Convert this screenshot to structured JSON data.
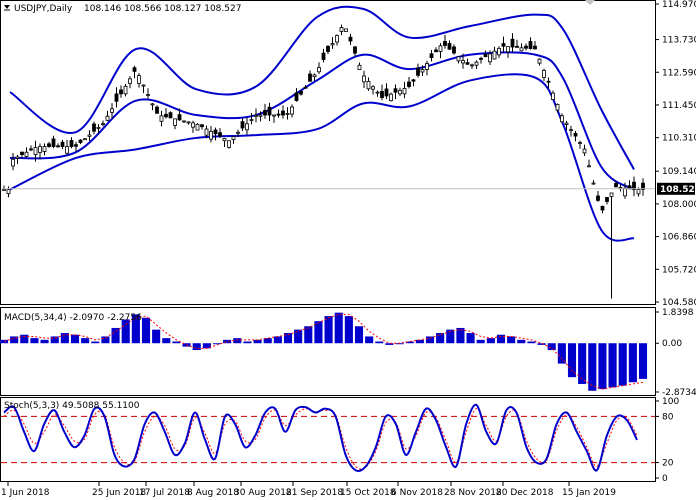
{
  "header": {
    "symbol": "USDJPY,Daily",
    "ohlc": "108.146 108.566 108.127 108.527"
  },
  "price_panel": {
    "last_price": "108.527",
    "y_ticks": [
      "114.970",
      "113.730",
      "112.590",
      "111.450",
      "110.310",
      "109.140",
      "108.000",
      "106.860",
      "105.720",
      "104.580"
    ],
    "ylim": [
      104.58,
      114.97
    ]
  },
  "macd_panel": {
    "label": "MACD(5,34,4) -2.0970 -2.2756",
    "y_ticks": [
      "1.8398",
      "0.00",
      "-2.8734"
    ],
    "ylim": [
      -2.8734,
      1.8398
    ]
  },
  "stoch_panel": {
    "label": "Stoch(5,3,3) 49.5088 55.1100",
    "y_ticks": [
      "100",
      "80",
      "20",
      "0"
    ],
    "levels": [
      80,
      20
    ]
  },
  "x_ticks": [
    "1 Jun 2018",
    "25 Jun 2018",
    "17 Jul 2018",
    "8 Aug 2018",
    "30 Aug 2018",
    "21 Sep 2018",
    "15 Oct 2018",
    "6 Nov 2018",
    "28 Nov 2018",
    "20 Dec 2018",
    "15 Jan 2019"
  ],
  "colors": {
    "bands": "#0000cc",
    "macd_hist": "#0000cc",
    "signal": "#ff0000",
    "stoch_main": "#0000cc",
    "grid": "#c0c0c0",
    "last_price_line": "#c0c0c0"
  },
  "chart_data": {
    "type": "line",
    "title": "USDJPY,Daily",
    "series": [
      {
        "name": "USDJPY close",
        "x": [
          "2018-06-01",
          "2018-06-11",
          "2018-06-25",
          "2018-07-05",
          "2018-07-17",
          "2018-07-25",
          "2018-08-08",
          "2018-08-20",
          "2018-08-30",
          "2018-09-10",
          "2018-09-21",
          "2018-10-01",
          "2018-10-08",
          "2018-10-15",
          "2018-10-25",
          "2018-11-06",
          "2018-11-16",
          "2018-11-28",
          "2018-12-10",
          "2018-12-20",
          "2018-12-28",
          "2019-01-03",
          "2019-01-08",
          "2019-01-15"
        ],
        "values": [
          109.5,
          110.0,
          110.0,
          110.8,
          112.7,
          111.1,
          110.8,
          110.2,
          111.1,
          111.1,
          112.6,
          114.3,
          112.5,
          111.7,
          112.1,
          113.6,
          112.8,
          113.5,
          113.4,
          111.0,
          109.9,
          107.7,
          108.6,
          108.5
        ]
      },
      {
        "name": "Bollinger upper",
        "x": [
          "2018-06-01",
          "2018-06-25",
          "2018-07-17",
          "2018-08-08",
          "2018-08-30",
          "2018-09-21",
          "2018-10-08",
          "2018-10-25",
          "2018-11-16",
          "2018-12-10",
          "2018-12-20",
          "2019-01-03",
          "2019-01-15"
        ],
        "values": [
          111.9,
          110.5,
          113.4,
          112.0,
          112.1,
          114.5,
          114.8,
          113.8,
          114.2,
          114.6,
          114.1,
          111.3,
          109.2
        ]
      },
      {
        "name": "Bollinger middle",
        "x": [
          "2018-06-01",
          "2018-06-25",
          "2018-07-17",
          "2018-08-08",
          "2018-08-30",
          "2018-09-21",
          "2018-10-08",
          "2018-10-25",
          "2018-11-16",
          "2018-12-10",
          "2018-12-20",
          "2019-01-03",
          "2019-01-15"
        ],
        "values": [
          109.6,
          109.8,
          111.6,
          111.1,
          111.1,
          112.3,
          113.2,
          112.7,
          113.2,
          113.2,
          112.4,
          109.3,
          108.5
        ]
      },
      {
        "name": "Bollinger lower",
        "x": [
          "2018-06-01",
          "2018-06-25",
          "2018-07-17",
          "2018-08-08",
          "2018-08-30",
          "2018-09-21",
          "2018-10-08",
          "2018-10-25",
          "2018-11-16",
          "2018-12-10",
          "2018-12-20",
          "2019-01-03",
          "2019-01-15"
        ],
        "values": [
          108.5,
          109.6,
          109.9,
          110.3,
          110.4,
          110.6,
          111.5,
          111.4,
          112.3,
          112.4,
          110.8,
          107.1,
          106.8
        ]
      }
    ],
    "macd": {
      "histogram": [
        0.2,
        0.4,
        0.5,
        0.3,
        0.2,
        0.4,
        0.6,
        0.5,
        0.3,
        0.1,
        0.4,
        0.9,
        1.4,
        1.7,
        1.5,
        0.8,
        0.3,
        0.1,
        -0.2,
        -0.4,
        -0.3,
        0.0,
        0.2,
        0.3,
        0.1,
        0.2,
        0.3,
        0.4,
        0.6,
        0.8,
        1.0,
        1.3,
        1.6,
        1.8,
        1.6,
        1.0,
        0.4,
        0.1,
        -0.1,
        0.0,
        0.1,
        0.2,
        0.4,
        0.6,
        0.8,
        0.9,
        0.6,
        0.2,
        0.3,
        0.5,
        0.4,
        0.2,
        0.1,
        -0.1,
        -0.4,
        -1.2,
        -2.0,
        -2.4,
        -2.8,
        -2.7,
        -2.6,
        -2.5,
        -2.3,
        -2.1
      ],
      "signal": [
        0.1,
        0.3,
        0.4,
        0.4,
        0.3,
        0.3,
        0.5,
        0.5,
        0.4,
        0.2,
        0.3,
        0.7,
        1.1,
        1.5,
        1.6,
        1.1,
        0.6,
        0.2,
        -0.1,
        -0.3,
        -0.3,
        -0.1,
        0.1,
        0.2,
        0.2,
        0.2,
        0.3,
        0.4,
        0.5,
        0.7,
        0.9,
        1.2,
        1.5,
        1.7,
        1.7,
        1.3,
        0.7,
        0.3,
        0.0,
        0.0,
        0.1,
        0.2,
        0.3,
        0.5,
        0.7,
        0.8,
        0.7,
        0.4,
        0.3,
        0.4,
        0.4,
        0.3,
        0.2,
        0.0,
        -0.3,
        -0.9,
        -1.6,
        -2.1,
        -2.5,
        -2.7,
        -2.6,
        -2.5,
        -2.4,
        -2.3
      ]
    },
    "stoch": {
      "main": [
        85,
        92,
        60,
        35,
        70,
        88,
        60,
        40,
        55,
        90,
        80,
        30,
        15,
        25,
        70,
        85,
        60,
        30,
        45,
        85,
        50,
        25,
        80,
        70,
        40,
        55,
        85,
        90,
        60,
        88,
        92,
        85,
        90,
        80,
        30,
        10,
        15,
        40,
        80,
        70,
        30,
        60,
        90,
        75,
        40,
        15,
        70,
        95,
        60,
        45,
        88,
        85,
        40,
        20,
        25,
        70,
        85,
        60,
        35,
        10,
        55,
        80,
        75,
        49.5
      ],
      "signal": [
        80,
        88,
        70,
        45,
        60,
        82,
        68,
        48,
        50,
        82,
        82,
        40,
        20,
        22,
        60,
        80,
        68,
        38,
        42,
        78,
        58,
        32,
        70,
        74,
        48,
        50,
        78,
        88,
        68,
        82,
        90,
        86,
        88,
        82,
        40,
        15,
        14,
        35,
        72,
        72,
        38,
        55,
        85,
        78,
        48,
        20,
        60,
        90,
        68,
        48,
        80,
        86,
        48,
        25,
        23,
        62,
        82,
        66,
        40,
        15,
        45,
        75,
        78,
        55.1
      ]
    }
  }
}
